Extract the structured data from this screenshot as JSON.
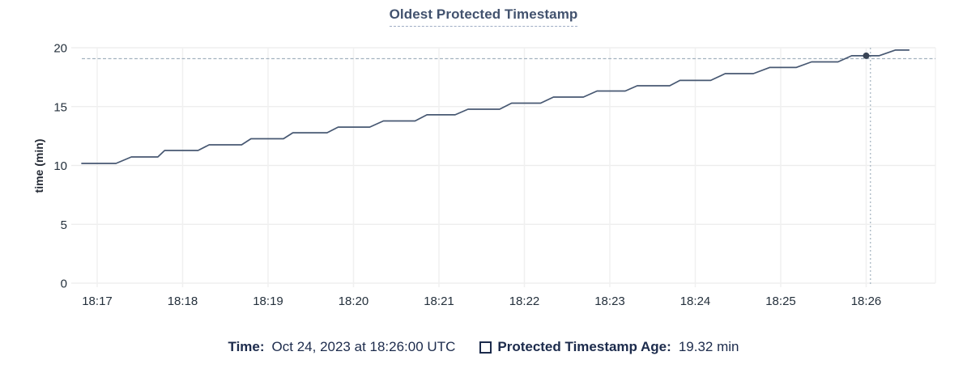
{
  "chart": {
    "title": "Oldest Protected Timestamp",
    "ylabel": "time (min)"
  },
  "legend": {
    "time_label": "Time:",
    "time_value": "Oct 24, 2023 at 18:26:00 UTC",
    "series_label": "Protected Timestamp Age:",
    "series_value": "19.32 min"
  },
  "colors": {
    "line": "#475872",
    "dot": "#394455",
    "cursor": "#a3b2bf",
    "grid_h": "#ececec",
    "grid_v": "#f0f0f0",
    "tick_text": "#24303c",
    "title_text": "#42526e",
    "legend_text": "#1c2b4c"
  },
  "chart_data": {
    "type": "line",
    "title": "Oldest Protected Timestamp",
    "xlabel": "",
    "ylabel": "time (min)",
    "x_ticks": [
      "18:17",
      "18:18",
      "18:19",
      "18:20",
      "18:21",
      "18:22",
      "18:23",
      "18:24",
      "18:25",
      "18:26"
    ],
    "y_ticks": [
      0,
      5,
      10,
      15,
      20
    ],
    "ylim": [
      0,
      20
    ],
    "grid": true,
    "legend_position": "bottom",
    "x_unit_note": "point x values are minutes relative to the 18:17 tick",
    "series": [
      {
        "name": "Protected Timestamp Age",
        "unit": "min",
        "points": [
          [
            -0.18,
            10.17
          ],
          [
            0.22,
            10.17
          ],
          [
            0.4,
            10.72
          ],
          [
            0.71,
            10.72
          ],
          [
            0.79,
            11.27
          ],
          [
            1.18,
            11.27
          ],
          [
            1.31,
            11.75
          ],
          [
            1.69,
            11.75
          ],
          [
            1.8,
            12.27
          ],
          [
            2.18,
            12.27
          ],
          [
            2.29,
            12.78
          ],
          [
            2.69,
            12.78
          ],
          [
            2.82,
            13.26
          ],
          [
            3.19,
            13.26
          ],
          [
            3.35,
            13.78
          ],
          [
            3.72,
            13.78
          ],
          [
            3.86,
            14.3
          ],
          [
            4.19,
            14.3
          ],
          [
            4.34,
            14.78
          ],
          [
            4.71,
            14.78
          ],
          [
            4.85,
            15.29
          ],
          [
            5.19,
            15.29
          ],
          [
            5.34,
            15.81
          ],
          [
            5.69,
            15.81
          ],
          [
            5.85,
            16.32
          ],
          [
            6.18,
            16.32
          ],
          [
            6.32,
            16.77
          ],
          [
            6.7,
            16.77
          ],
          [
            6.82,
            17.22
          ],
          [
            7.18,
            17.22
          ],
          [
            7.35,
            17.8
          ],
          [
            7.68,
            17.8
          ],
          [
            7.87,
            18.32
          ],
          [
            8.18,
            18.32
          ],
          [
            8.36,
            18.8
          ],
          [
            8.67,
            18.8
          ],
          [
            8.83,
            19.32
          ],
          [
            9.15,
            19.32
          ],
          [
            9.34,
            19.8
          ],
          [
            9.5,
            19.8
          ]
        ]
      }
    ],
    "hover": {
      "cursor_t": 9.05,
      "cursor_value": 19.07,
      "point_t": 9.0,
      "point_value": 19.32,
      "point_time_label": "18:26",
      "readout_time": "Oct 24, 2023 at 18:26:00 UTC",
      "readout_value": "19.32 min"
    }
  }
}
